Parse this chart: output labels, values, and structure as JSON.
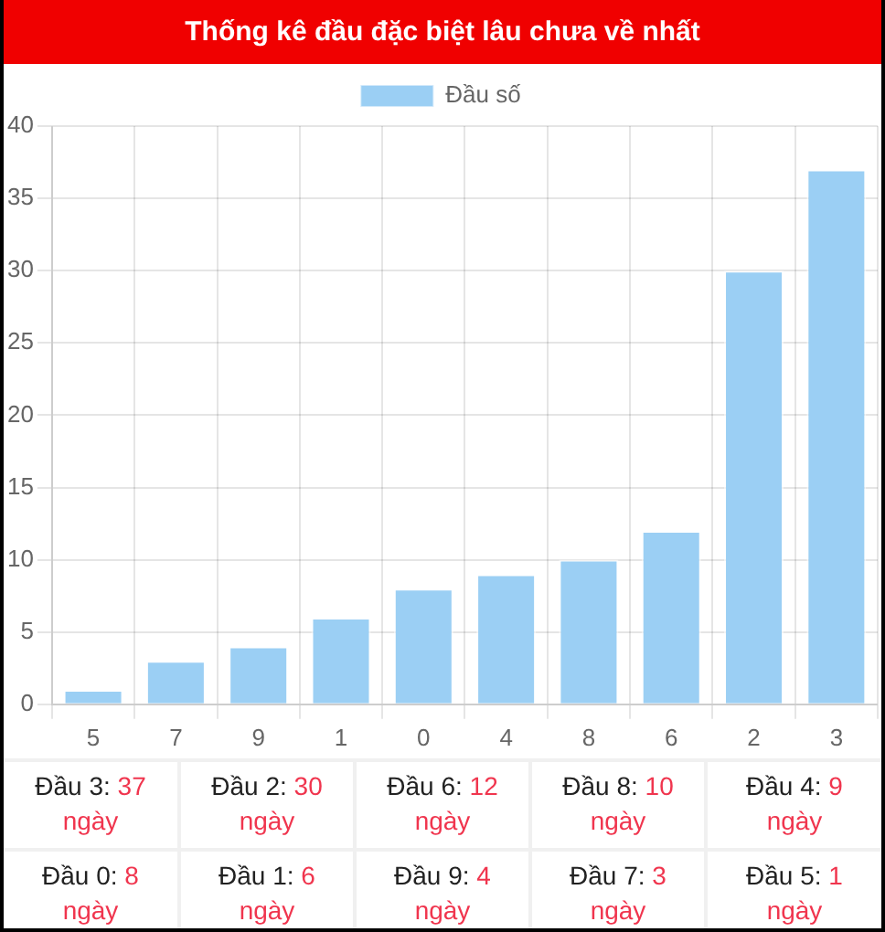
{
  "chart_data": {
    "type": "bar",
    "title": "Thống kê đầu đặc biệt lâu chưa về nhất",
    "categories": [
      "5",
      "7",
      "9",
      "1",
      "0",
      "4",
      "8",
      "6",
      "2",
      "3"
    ],
    "series": [
      {
        "name": "Đầu số",
        "color": "#9bcff4",
        "values": [
          1,
          3,
          4,
          6,
          8,
          9,
          10,
          12,
          30,
          37
        ]
      }
    ],
    "ylim": [
      0,
      40
    ],
    "yticks": [
      0,
      5,
      10,
      15,
      20,
      25,
      30,
      35,
      40
    ],
    "grid": true,
    "legend": "top",
    "annotations": [
      "Đầu 3: 37 ngày",
      "Đầu 2: 30 ngày",
      "Đầu 6: 12 ngày",
      "Đầu 8: 10 ngày",
      "Đầu 4: 9 ngày",
      "Đầu 0: 8 ngày",
      "Đầu 1: 6 ngày",
      "Đầu 9: 4 ngày",
      "Đầu 7: 3 ngày",
      "Đầu 5: 1 ngày"
    ]
  }
}
